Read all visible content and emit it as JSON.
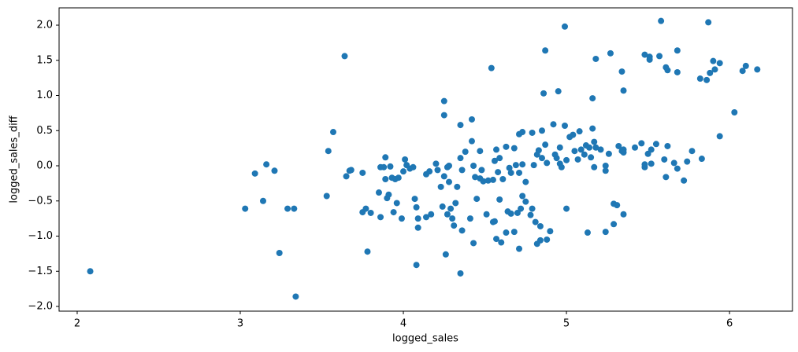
{
  "chart_data": {
    "type": "scatter",
    "xlabel": "logged_sales",
    "ylabel": "logged_sales_diff",
    "color": "#1f77b4",
    "xlim": [
      1.889,
      6.386
    ],
    "ylim": [
      -2.067,
      2.246
    ],
    "xticks": [
      2,
      3,
      4,
      5,
      6
    ],
    "yticks": [
      {
        "value": -2.0,
        "label": "−2.0"
      },
      {
        "value": -1.5,
        "label": "−1.5"
      },
      {
        "value": -1.0,
        "label": "−1.0"
      },
      {
        "value": -0.5,
        "label": "−0.5"
      },
      {
        "value": 0.0,
        "label": "0.0"
      },
      {
        "value": 0.5,
        "label": "0.5"
      },
      {
        "value": 1.0,
        "label": "1.0"
      },
      {
        "value": 1.5,
        "label": "1.5"
      },
      {
        "value": 2.0,
        "label": "2.0"
      }
    ],
    "x": [
      2.08,
      3.03,
      3.09,
      3.14,
      3.16,
      3.21,
      3.24,
      3.29,
      3.33,
      3.34,
      3.53,
      3.54,
      3.57,
      3.64,
      3.65,
      3.67,
      3.68,
      3.75,
      3.75,
      3.77,
      3.78,
      3.8,
      3.85,
      3.86,
      3.86,
      3.88,
      3.89,
      3.89,
      3.9,
      3.91,
      3.92,
      3.93,
      3.94,
      3.95,
      3.96,
      3.97,
      3.99,
      4.0,
      4.01,
      4.02,
      4.04,
      4.06,
      4.07,
      4.08,
      4.08,
      4.09,
      4.09,
      4.14,
      4.14,
      4.16,
      4.17,
      4.2,
      4.21,
      4.23,
      4.24,
      4.25,
      4.25,
      4.25,
      4.26,
      4.27,
      4.27,
      4.28,
      4.28,
      4.29,
      4.3,
      4.31,
      4.32,
      4.33,
      4.35,
      4.35,
      4.35,
      4.36,
      4.36,
      4.38,
      4.41,
      4.42,
      4.42,
      4.43,
      4.43,
      4.44,
      4.45,
      4.47,
      4.47,
      4.48,
      4.49,
      4.52,
      4.51,
      4.54,
      4.55,
      4.55,
      4.56,
      4.56,
      4.57,
      4.57,
      4.58,
      4.59,
      4.59,
      4.6,
      4.61,
      4.63,
      4.63,
      4.64,
      4.65,
      4.66,
      4.66,
      4.68,
      4.68,
      4.69,
      4.7,
      4.71,
      4.71,
      4.71,
      4.72,
      4.73,
      4.73,
      4.73,
      4.75,
      4.75,
      4.78,
      4.79,
      4.79,
      4.8,
      4.81,
      4.82,
      4.82,
      4.83,
      4.84,
      4.84,
      4.85,
      4.85,
      4.86,
      4.87,
      4.87,
      4.88,
      4.88,
      4.9,
      4.92,
      4.93,
      4.94,
      4.95,
      4.96,
      4.96,
      4.97,
      4.99,
      4.99,
      5.0,
      5.0,
      5.02,
      5.04,
      5.05,
      5.07,
      5.08,
      5.09,
      5.11,
      5.12,
      5.13,
      5.14,
      5.15,
      5.16,
      5.16,
      5.17,
      5.17,
      5.18,
      5.18,
      5.21,
      5.24,
      5.24,
      5.24,
      5.26,
      5.27,
      5.29,
      5.29,
      5.31,
      5.32,
      5.34,
      5.34,
      5.35,
      5.35,
      5.35,
      5.35,
      5.42,
      5.46,
      5.48,
      5.48,
      5.48,
      5.5,
      5.51,
      5.51,
      5.52,
      5.52,
      5.55,
      5.57,
      5.58,
      5.6,
      5.61,
      5.61,
      5.62,
      5.62,
      5.66,
      5.68,
      5.68,
      5.68,
      5.72,
      5.74,
      5.77,
      5.82,
      5.83,
      5.86,
      5.87,
      5.88,
      5.9,
      5.91,
      5.94,
      5.94,
      6.03,
      6.08,
      6.1,
      6.17
    ],
    "values": [
      -1.5,
      -0.61,
      -0.11,
      -0.5,
      0.02,
      -0.07,
      -1.24,
      -0.61,
      -0.61,
      -1.86,
      -0.43,
      0.21,
      0.48,
      1.56,
      -0.15,
      -0.07,
      -0.06,
      -0.1,
      -0.66,
      -0.61,
      -1.22,
      -0.67,
      -0.38,
      -0.02,
      -0.73,
      -0.02,
      0.12,
      -0.19,
      -0.46,
      -0.41,
      -0.01,
      -0.17,
      -0.66,
      -0.19,
      -0.53,
      -0.17,
      -0.75,
      -0.08,
      0.09,
      0.01,
      -0.04,
      -0.02,
      -0.47,
      -0.59,
      -1.41,
      -0.75,
      -0.88,
      -0.73,
      -0.12,
      -0.08,
      -0.69,
      0.03,
      -0.06,
      -0.3,
      -0.58,
      0.92,
      0.72,
      -0.15,
      -1.26,
      -0.02,
      -0.69,
      0.0,
      -0.23,
      -0.61,
      -0.75,
      -0.85,
      -0.53,
      -0.3,
      0.58,
      0.11,
      -1.53,
      -0.92,
      -0.06,
      0.2,
      -0.75,
      0.66,
      0.35,
      -1.1,
      0.0,
      -0.16,
      -0.47,
      0.21,
      -0.18,
      -0.06,
      -0.22,
      -0.21,
      -0.69,
      1.39,
      -0.2,
      -0.8,
      0.07,
      -0.79,
      0.23,
      -1.04,
      -0.09,
      0.11,
      -0.48,
      -1.09,
      -0.19,
      0.27,
      -0.95,
      -0.65,
      -0.03,
      -0.1,
      -0.68,
      0.25,
      -0.94,
      0.01,
      -0.67,
      0.45,
      -1.18,
      -0.1,
      -0.61,
      0.48,
      -0.43,
      0.02,
      -0.51,
      -0.23,
      -0.7,
      0.47,
      -0.61,
      0.01,
      -0.8,
      -1.11,
      0.16,
      0.22,
      -0.86,
      -1.06,
      0.11,
      0.5,
      1.03,
      0.3,
      1.64,
      -1.05,
      0.04,
      -0.93,
      0.59,
      0.16,
      0.11,
      1.06,
      0.26,
      0.03,
      -0.02,
      0.57,
      1.98,
      -0.61,
      0.08,
      0.41,
      0.44,
      0.21,
      0.09,
      0.49,
      0.23,
      0.16,
      0.29,
      -0.95,
      0.26,
      0.12,
      0.53,
      0.96,
      0.34,
      -0.02,
      0.26,
      1.52,
      0.23,
      -0.94,
      0.0,
      -0.07,
      0.17,
      1.6,
      -0.54,
      -0.83,
      -0.56,
      0.28,
      0.21,
      1.34,
      0.23,
      -0.69,
      1.07,
      0.19,
      0.26,
      0.32,
      -0.02,
      0.02,
      1.58,
      0.17,
      1.51,
      1.55,
      0.23,
      0.03,
      0.31,
      1.56,
      2.06,
      0.09,
      1.4,
      -0.16,
      0.28,
      1.36,
      0.04,
      1.64,
      -0.04,
      1.33,
      -0.21,
      0.06,
      0.21,
      1.24,
      0.1,
      1.22,
      2.04,
      1.32,
      1.49,
      1.37,
      1.46,
      0.42,
      0.76,
      1.35,
      1.42,
      1.37
    ]
  }
}
